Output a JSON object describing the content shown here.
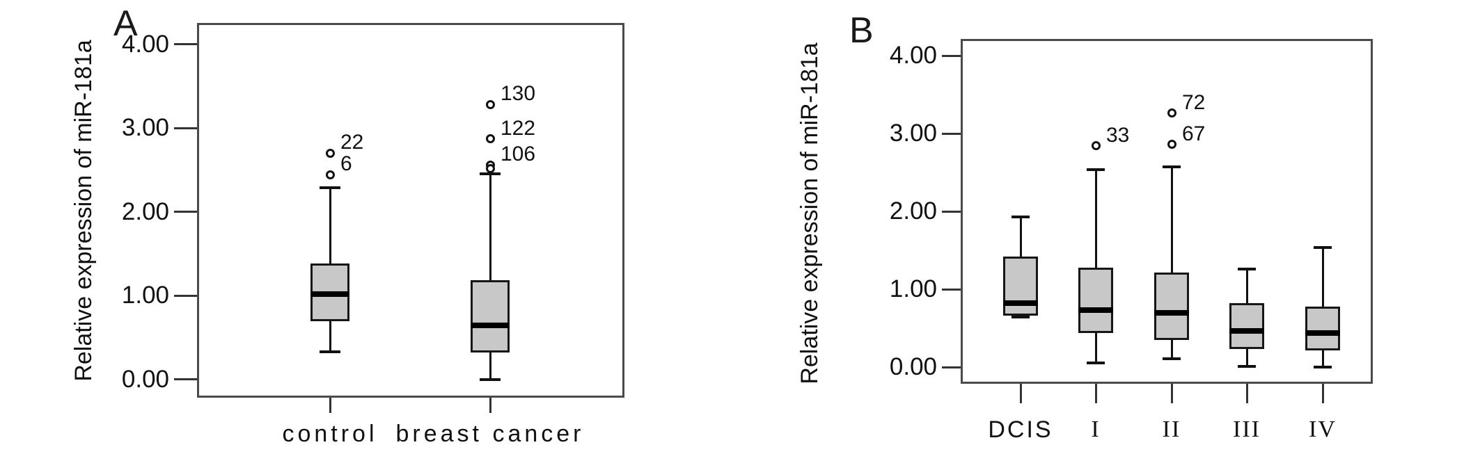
{
  "figure_type": "two-panel boxplot figure",
  "chart_data": [
    {
      "type": "boxplot",
      "panel": "A",
      "ylabel": "Relative expression of miR-181a",
      "yticks": [
        "4.00",
        "3.00",
        "2.00",
        "1.00",
        "0.00"
      ],
      "ylim": [
        0,
        4.25
      ],
      "grid": false,
      "categories": [
        "control",
        "breast cancer"
      ],
      "boxes": [
        {
          "category": "control",
          "whisker_low": 0.33,
          "q1": 0.69,
          "median": 1.02,
          "q3": 1.38,
          "whisker_high": 2.29,
          "outliers": [
            {
              "value": 2.44,
              "label": "6"
            },
            {
              "value": 2.7,
              "label": "22"
            }
          ]
        },
        {
          "category": "breast cancer",
          "whisker_low": 0.0,
          "q1": 0.32,
          "median": 0.64,
          "q3": 1.18,
          "whisker_high": 2.45,
          "outliers": [
            {
              "value": 2.56,
              "label": "106",
              "double": true
            },
            {
              "value": 2.87,
              "label": "122"
            },
            {
              "value": 3.28,
              "label": "130"
            }
          ]
        }
      ]
    },
    {
      "type": "boxplot",
      "panel": "B",
      "ylabel": "Relative expression of miR-181a",
      "yticks": [
        "4.00",
        "3.00",
        "2.00",
        "1.00",
        "0.00"
      ],
      "ylim": [
        0,
        4.21
      ],
      "grid": false,
      "categories": [
        "DCIS",
        "I",
        "II",
        "III",
        "IV"
      ],
      "boxes": [
        {
          "category": "DCIS",
          "whisker_low": 0.64,
          "q1": 0.66,
          "median": 0.82,
          "q3": 1.42,
          "whisker_high": 1.93,
          "outliers": []
        },
        {
          "category": "I",
          "whisker_low": 0.05,
          "q1": 0.44,
          "median": 0.73,
          "q3": 1.28,
          "whisker_high": 2.54,
          "outliers": [
            {
              "value": 2.84,
              "label": "33"
            }
          ]
        },
        {
          "category": "II",
          "whisker_low": 0.11,
          "q1": 0.35,
          "median": 0.7,
          "q3": 1.21,
          "whisker_high": 2.57,
          "outliers": [
            {
              "value": 2.86,
              "label": "67"
            },
            {
              "value": 3.26,
              "label": "72"
            }
          ]
        },
        {
          "category": "III",
          "whisker_low": 0.01,
          "q1": 0.23,
          "median": 0.46,
          "q3": 0.82,
          "whisker_high": 1.26,
          "outliers": []
        },
        {
          "category": "IV",
          "whisker_low": 0.0,
          "q1": 0.21,
          "median": 0.44,
          "q3": 0.78,
          "whisker_high": 1.54,
          "outliers": []
        }
      ]
    }
  ],
  "colors": {
    "box_fill": "#c8c8c8",
    "box_border": "#161616",
    "median": "#000000",
    "axis_border": "#4a4a4a",
    "text": "#111111",
    "background": "#ffffff"
  }
}
